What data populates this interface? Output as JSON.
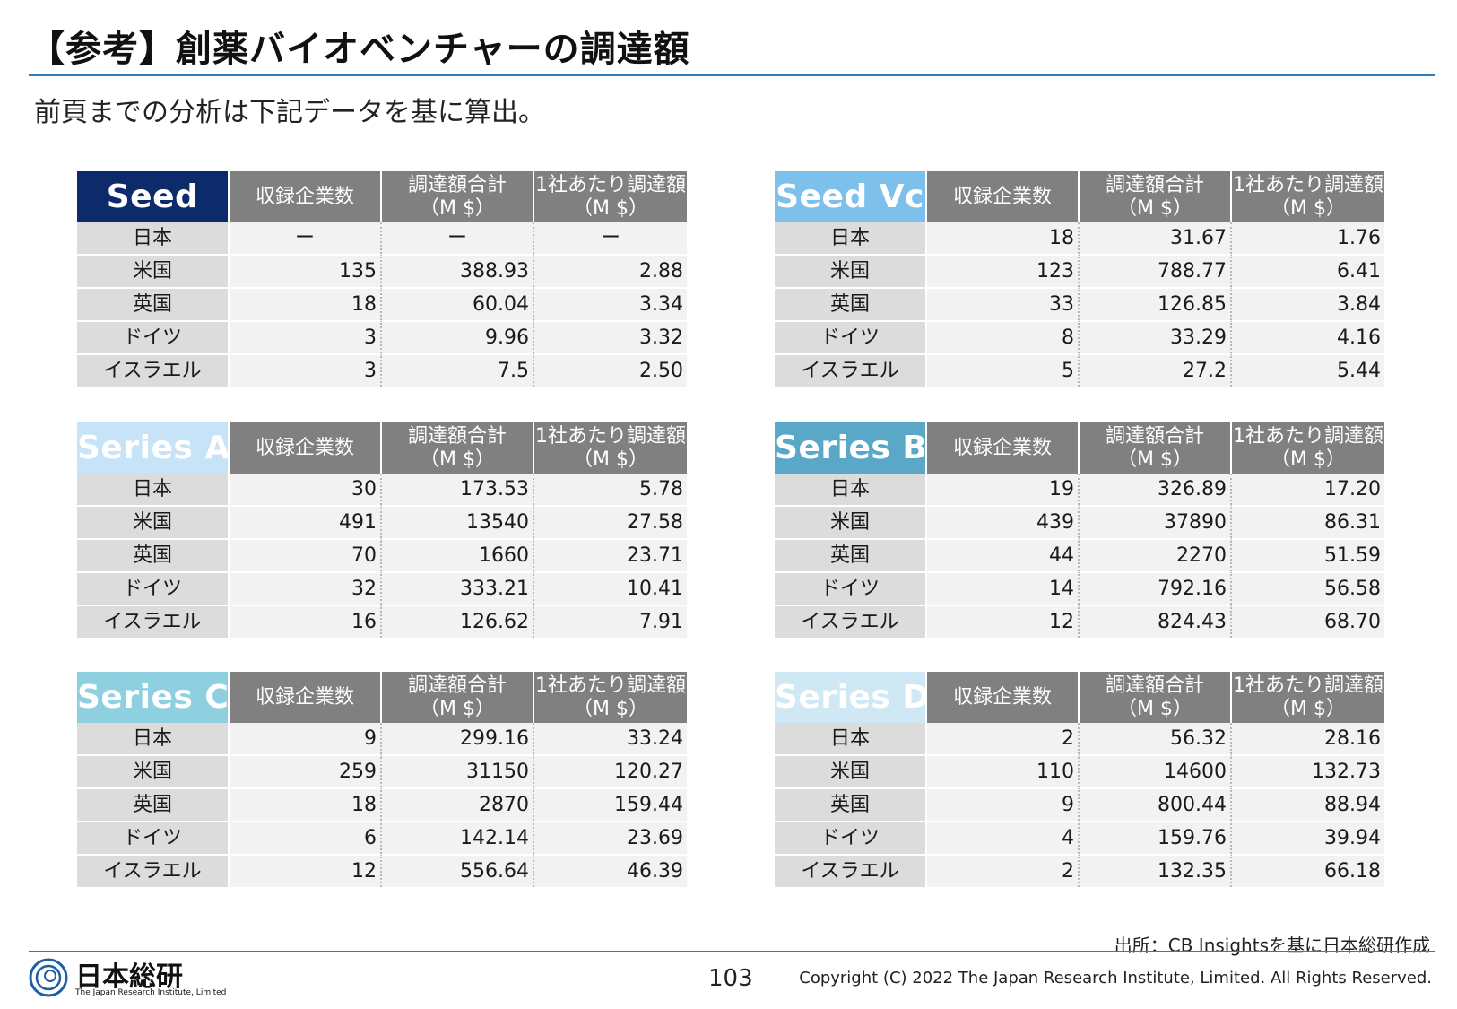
{
  "header": {
    "title": "【参考】創薬バイオベンチャーの調達額",
    "subtitle": "前頁までの分析は下記データを基に算出。"
  },
  "columns": {
    "companies": "収録企業数",
    "total_l1": "調達額合計",
    "total_l2": "（M $）",
    "per_l1": "1社あたり調達額",
    "per_l2": "（M $）"
  },
  "countries": [
    "日本",
    "米国",
    "英国",
    "ドイツ",
    "イスラエル"
  ],
  "tables": [
    {
      "stage": "Seed",
      "header_color": "#0d2a6b",
      "rows": [
        [
          "日本",
          "ー",
          "ー",
          "ー"
        ],
        [
          "米国",
          "135",
          "388.93",
          "2.88"
        ],
        [
          "英国",
          "18",
          "60.04",
          "3.34"
        ],
        [
          "ドイツ",
          "3",
          "9.96",
          "3.32"
        ],
        [
          "イスラエル",
          "3",
          "7.5",
          "2.50"
        ]
      ]
    },
    {
      "stage": "Seed Vc",
      "header_color": "#7ec0ec",
      "rows": [
        [
          "日本",
          "18",
          "31.67",
          "1.76"
        ],
        [
          "米国",
          "123",
          "788.77",
          "6.41"
        ],
        [
          "英国",
          "33",
          "126.85",
          "3.84"
        ],
        [
          "ドイツ",
          "8",
          "33.29",
          "4.16"
        ],
        [
          "イスラエル",
          "5",
          "27.2",
          "5.44"
        ]
      ]
    },
    {
      "stage": "Series A",
      "header_color": "#c6e3f7",
      "rows": [
        [
          "日本",
          "30",
          "173.53",
          "5.78"
        ],
        [
          "米国",
          "491",
          "13540",
          "27.58"
        ],
        [
          "英国",
          "70",
          "1660",
          "23.71"
        ],
        [
          "ドイツ",
          "32",
          "333.21",
          "10.41"
        ],
        [
          "イスラエル",
          "16",
          "126.62",
          "7.91"
        ]
      ]
    },
    {
      "stage": "Series B",
      "header_color": "#5aa8c8",
      "rows": [
        [
          "日本",
          "19",
          "326.89",
          "17.20"
        ],
        [
          "米国",
          "439",
          "37890",
          "86.31"
        ],
        [
          "英国",
          "44",
          "2270",
          "51.59"
        ],
        [
          "ドイツ",
          "14",
          "792.16",
          "56.58"
        ],
        [
          "イスラエル",
          "12",
          "824.43",
          "68.70"
        ]
      ]
    },
    {
      "stage": "Series C",
      "header_color": "#8fd0e0",
      "rows": [
        [
          "日本",
          "9",
          "299.16",
          "33.24"
        ],
        [
          "米国",
          "259",
          "31150",
          "120.27"
        ],
        [
          "英国",
          "18",
          "2870",
          "159.44"
        ],
        [
          "ドイツ",
          "6",
          "142.14",
          "23.69"
        ],
        [
          "イスラエル",
          "12",
          "556.64",
          "46.39"
        ]
      ]
    },
    {
      "stage": "Series D",
      "header_color": "#cfe8f3",
      "rows": [
        [
          "日本",
          "2",
          "56.32",
          "28.16"
        ],
        [
          "米国",
          "110",
          "14600",
          "132.73"
        ],
        [
          "英国",
          "9",
          "800.44",
          "88.94"
        ],
        [
          "ドイツ",
          "4",
          "159.76",
          "39.94"
        ],
        [
          "イスラエル",
          "2",
          "132.35",
          "66.18"
        ]
      ]
    }
  ],
  "footer": {
    "source": "出所：CB Insightsを基に日本総研作成",
    "logo_text": "日本総研",
    "logo_sub": "The Japan Research Institute, Limited",
    "page_number": "103",
    "copyright": "Copyright (C) 2022 The Japan Research Institute, Limited. All Rights Reserved."
  }
}
